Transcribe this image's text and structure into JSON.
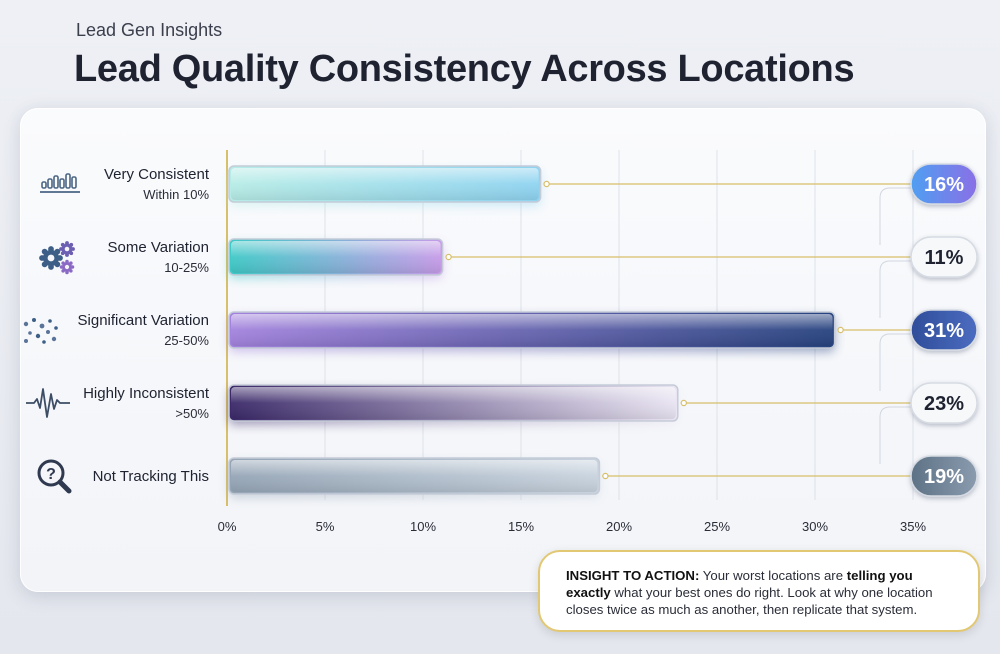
{
  "header": {
    "subtitle": "Lead Gen Insights",
    "title": "Lead Quality Consistency Across Locations"
  },
  "chart_data": {
    "type": "bar",
    "orientation": "horizontal",
    "categories": [
      {
        "label": "Very Consistent",
        "sublabel": "Within 10%",
        "icon": "bar-chart-icon"
      },
      {
        "label": "Some Variation",
        "sublabel": "10-25%",
        "icon": "gears-icon"
      },
      {
        "label": "Significant Variation",
        "sublabel": "25-50%",
        "icon": "scatter-dots-icon"
      },
      {
        "label": "Highly Inconsistent",
        "sublabel": ">50%",
        "icon": "pulse-wave-icon"
      },
      {
        "label": "Not Tracking This",
        "sublabel": "",
        "icon": "question-magnifier-icon"
      }
    ],
    "values": [
      16,
      11,
      31,
      23,
      19
    ],
    "value_labels": [
      "16%",
      "11%",
      "31%",
      "23%",
      "19%"
    ],
    "xlim": [
      0,
      35
    ],
    "xticks": [
      0,
      5,
      10,
      15,
      20,
      25,
      30,
      35
    ],
    "xtick_labels": [
      "0%",
      "5%",
      "10%",
      "15%",
      "20%",
      "25%",
      "30%",
      "35%"
    ],
    "grid": true,
    "bar_colors": [
      [
        "#b7ece6",
        "#8fd3f0"
      ],
      [
        "#3fc9c7",
        "#c79be8"
      ],
      [
        "#a383dd",
        "#27437f"
      ],
      [
        "#3a2868",
        "#e9e4f2"
      ],
      [
        "#95a5b6",
        "#c8d3de"
      ]
    ],
    "badge_styles": [
      {
        "fill": "#4f9ff2",
        "fill2": "#8a6fe6",
        "text": "#ffffff"
      },
      {
        "fill": "#f7f8fa",
        "fill2": "#f7f8fa",
        "text": "#1f2230"
      },
      {
        "fill": "#2f4d9a",
        "fill2": "#4c6cc0",
        "text": "#ffffff"
      },
      {
        "fill": "#f7f8fa",
        "fill2": "#f7f8fa",
        "text": "#1f2230"
      },
      {
        "fill": "#5e7286",
        "fill2": "#8a9bae",
        "text": "#ffffff"
      }
    ],
    "connector_color": "#d8bf6a"
  },
  "insight": {
    "heading": "INSIGHT TO ACTION:",
    "text_1": "Your worst locations are",
    "emphasis": "telling you exactly",
    "text_2": "what your best ones do right. Look at why one location closes twice as much as another, then replicate that system."
  }
}
